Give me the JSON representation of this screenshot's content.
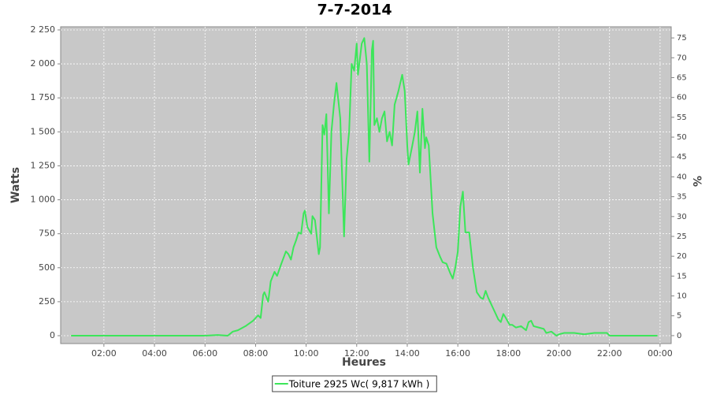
{
  "chart_data": {
    "type": "line",
    "title": "7-7-2014",
    "x_label": "Heures",
    "y_label": "Watts",
    "y2_label": "%",
    "grid": true,
    "legend": "bottom",
    "xlim": [
      0.29,
      24.44
    ],
    "xticks": [
      {
        "value": 2,
        "label": "02:00"
      },
      {
        "value": 4,
        "label": "04:00"
      },
      {
        "value": 6,
        "label": "06:00"
      },
      {
        "value": 8,
        "label": "08:00"
      },
      {
        "value": 10,
        "label": "10:00"
      },
      {
        "value": 12,
        "label": "12:00"
      },
      {
        "value": 14,
        "label": "14:00"
      },
      {
        "value": 16,
        "label": "16:00"
      },
      {
        "value": 18,
        "label": "18:00"
      },
      {
        "value": 20,
        "label": "20:00"
      },
      {
        "value": 22,
        "label": "22:00"
      },
      {
        "value": 24,
        "label": "00:00"
      }
    ],
    "ylim": [
      -58,
      2273
    ],
    "yticks": [
      0,
      250,
      500,
      750,
      {
        "value": 1000,
        "label": "1 000"
      },
      {
        "value": 1250,
        "label": "1 250"
      },
      {
        "value": 1500,
        "label": "1 500"
      },
      {
        "value": 1750,
        "label": "1 750"
      },
      {
        "value": 2000,
        "label": "2 000"
      },
      {
        "value": 2250,
        "label": "2 250"
      }
    ],
    "y2lim": [
      -2,
      77.8
    ],
    "y2ticks": [
      0,
      5,
      10,
      15,
      20,
      25,
      30,
      35,
      40,
      45,
      50,
      55,
      60,
      65,
      70,
      75
    ],
    "x": [
      0.7,
      6.0,
      6.5,
      6.9,
      7.1,
      7.3,
      7.6,
      7.9,
      8.1,
      8.2,
      8.3,
      8.35,
      8.5,
      8.6,
      8.75,
      8.85,
      9.0,
      9.2,
      9.3,
      9.4,
      9.5,
      9.6,
      9.7,
      9.8,
      9.9,
      9.95,
      10.05,
      10.2,
      10.25,
      10.35,
      10.5,
      10.55,
      10.65,
      10.72,
      10.8,
      10.9,
      11.0,
      11.1,
      11.2,
      11.35,
      11.5,
      11.6,
      11.7,
      11.8,
      11.9,
      12.0,
      12.05,
      12.2,
      12.3,
      12.4,
      12.5,
      12.6,
      12.65,
      12.7,
      12.8,
      12.9,
      13.0,
      13.1,
      13.2,
      13.3,
      13.4,
      13.5,
      13.65,
      13.8,
      13.9,
      14.0,
      14.05,
      14.2,
      14.3,
      14.4,
      14.5,
      14.6,
      14.7,
      14.75,
      14.85,
      15.0,
      15.15,
      15.3,
      15.4,
      15.55,
      15.7,
      15.8,
      15.9,
      16.0,
      16.1,
      16.2,
      16.3,
      16.45,
      16.6,
      16.75,
      16.9,
      17.0,
      17.1,
      17.2,
      17.4,
      17.6,
      17.7,
      17.8,
      17.9,
      18.05,
      18.15,
      18.3,
      18.5,
      18.7,
      18.8,
      18.9,
      19.0,
      19.2,
      19.4,
      19.5,
      19.7,
      19.9,
      20.0,
      20.2,
      20.6,
      21.0,
      21.4,
      21.9,
      22.0,
      23.9
    ],
    "series": [
      {
        "name": "Toiture 2925 Wc( 9,817 kWh )",
        "color": "#3ce65a",
        "values": [
          0,
          0,
          5,
          0,
          30,
          40,
          70,
          110,
          150,
          130,
          300,
          320,
          250,
          400,
          470,
          440,
          520,
          620,
          600,
          560,
          650,
          700,
          760,
          750,
          900,
          920,
          800,
          750,
          880,
          850,
          600,
          650,
          1550,
          1480,
          1630,
          900,
          1500,
          1700,
          1860,
          1600,
          730,
          1300,
          1500,
          2000,
          1950,
          2150,
          1920,
          2150,
          2190,
          2000,
          1280,
          2100,
          2170,
          1550,
          1600,
          1500,
          1600,
          1650,
          1430,
          1500,
          1400,
          1700,
          1800,
          1920,
          1800,
          1400,
          1260,
          1400,
          1500,
          1650,
          1200,
          1670,
          1380,
          1460,
          1400,
          900,
          650,
          580,
          540,
          530,
          460,
          420,
          500,
          620,
          950,
          1060,
          760,
          760,
          500,
          320,
          280,
          270,
          330,
          280,
          200,
          120,
          100,
          160,
          130,
          80,
          80,
          60,
          70,
          40,
          100,
          110,
          70,
          60,
          50,
          20,
          30,
          0,
          10,
          20,
          20,
          10,
          20,
          20,
          0,
          0
        ]
      }
    ]
  }
}
